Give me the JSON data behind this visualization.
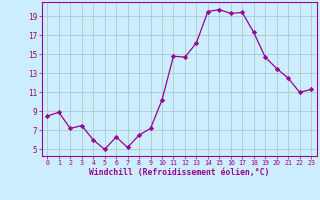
{
  "x": [
    0,
    1,
    2,
    3,
    4,
    5,
    6,
    7,
    8,
    9,
    10,
    11,
    12,
    13,
    14,
    15,
    16,
    17,
    18,
    19,
    20,
    21,
    22,
    23
  ],
  "y": [
    8.5,
    8.9,
    7.2,
    7.5,
    6.0,
    5.0,
    6.3,
    5.2,
    6.5,
    7.2,
    10.2,
    14.8,
    14.7,
    16.2,
    19.5,
    19.7,
    19.3,
    19.4,
    17.3,
    14.7,
    13.5,
    12.5,
    11.0,
    11.3
  ],
  "line_color": "#990099",
  "marker": "D",
  "marker_size": 2.2,
  "bg_color": "#cceeff",
  "grid_color": "#aacccc",
  "xlabel": "Windchill (Refroidissement éolien,°C)",
  "xticks": [
    0,
    1,
    2,
    3,
    4,
    5,
    6,
    7,
    8,
    9,
    10,
    11,
    12,
    13,
    14,
    15,
    16,
    17,
    18,
    19,
    20,
    21,
    22,
    23
  ],
  "yticks": [
    5,
    7,
    9,
    11,
    13,
    15,
    17,
    19
  ],
  "ylim": [
    4.3,
    20.5
  ],
  "xlim": [
    -0.5,
    23.5
  ]
}
